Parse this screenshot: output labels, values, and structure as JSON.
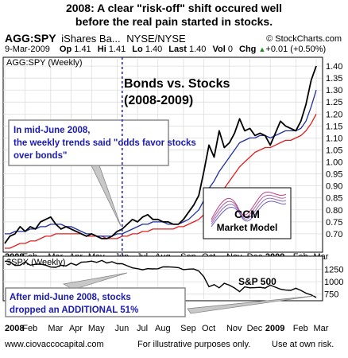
{
  "title_lines": [
    "2008: A clear \"risk-off\" shift occured well",
    "before the real pain started in stocks."
  ],
  "header": {
    "symbol": "AGG:SPY",
    "description": "iShares Ba...",
    "exchange": "NYSE/NYSE",
    "site": "© StockCharts.com",
    "date": "9-Mar-2009",
    "ohlc": [
      {
        "label": "Op",
        "value": "1.41"
      },
      {
        "label": "Hi",
        "value": "1.41"
      },
      {
        "label": "Lo",
        "value": "1.40"
      },
      {
        "label": "Last",
        "value": "1.40"
      },
      {
        "label": "Vol",
        "value": "0"
      },
      {
        "label": "Chg",
        "value": "+0.01 (+0.50%)"
      }
    ],
    "change_icon": "up-triangle-icon"
  },
  "footer": {
    "site": "www.ciovaccocapital.com",
    "note1": "For illustrative purposes only.",
    "note2": "Use at own risk."
  },
  "chart_data": [
    {
      "type": "line",
      "panel_label": "AGG:SPY (Weekly)",
      "title": "Bonds vs. Stocks",
      "subtitle": "(2008-2009)",
      "annotation": "In mid-June 2008, the weekly trends said \"odds favor stocks over bonds\"",
      "inset_label": [
        "CCM",
        "Market Model"
      ],
      "x": [
        "2008-01-04",
        "2008-01-11",
        "2008-01-18",
        "2008-01-25",
        "2008-02-01",
        "2008-02-08",
        "2008-02-15",
        "2008-02-22",
        "2008-02-29",
        "2008-03-07",
        "2008-03-14",
        "2008-03-21",
        "2008-03-28",
        "2008-04-04",
        "2008-04-11",
        "2008-04-18",
        "2008-04-25",
        "2008-05-02",
        "2008-05-09",
        "2008-05-16",
        "2008-05-23",
        "2008-05-30",
        "2008-06-06",
        "2008-06-13",
        "2008-06-20",
        "2008-06-27",
        "2008-07-04",
        "2008-07-11",
        "2008-07-18",
        "2008-07-25",
        "2008-08-01",
        "2008-08-08",
        "2008-08-15",
        "2008-08-22",
        "2008-08-29",
        "2008-09-05",
        "2008-09-12",
        "2008-09-19",
        "2008-09-26",
        "2008-10-03",
        "2008-10-10",
        "2008-10-17",
        "2008-10-24",
        "2008-10-31",
        "2008-11-07",
        "2008-11-14",
        "2008-11-21",
        "2008-11-28",
        "2008-12-05",
        "2008-12-12",
        "2008-12-19",
        "2008-12-26",
        "2009-01-02",
        "2009-01-09",
        "2009-01-16",
        "2009-01-23",
        "2009-01-30",
        "2009-02-06",
        "2009-02-13",
        "2009-02-20",
        "2009-02-27",
        "2009-03-06"
      ],
      "x_ticks": [
        "2008",
        "Feb",
        "Mar",
        "Apr",
        "May",
        "Jun",
        "Jul",
        "Aug",
        "Sep",
        "Oct",
        "Nov",
        "Dec",
        "2009",
        "Feb",
        "Mar"
      ],
      "series": [
        {
          "color": "#000000",
          "values": [
            0.66,
            0.69,
            0.7,
            0.73,
            0.71,
            0.73,
            0.72,
            0.75,
            0.76,
            0.77,
            0.74,
            0.72,
            0.73,
            0.72,
            0.71,
            0.7,
            0.69,
            0.7,
            0.69,
            0.68,
            0.68,
            0.69,
            0.71,
            0.72,
            0.74,
            0.76,
            0.75,
            0.77,
            0.78,
            0.76,
            0.76,
            0.75,
            0.75,
            0.74,
            0.74,
            0.76,
            0.79,
            0.82,
            0.86,
            0.96,
            1.07,
            1.02,
            1.13,
            1.06,
            1.08,
            1.12,
            1.18,
            1.13,
            1.14,
            1.11,
            1.12,
            1.11,
            1.07,
            1.12,
            1.17,
            1.15,
            1.14,
            1.13,
            1.17,
            1.24,
            1.34,
            1.4
          ]
        },
        {
          "color": "#1f2fa0",
          "values": [
            0.7,
            0.7,
            0.71,
            0.71,
            0.71,
            0.72,
            0.72,
            0.73,
            0.73,
            0.74,
            0.74,
            0.74,
            0.73,
            0.73,
            0.72,
            0.71,
            0.7,
            0.7,
            0.69,
            0.69,
            0.69,
            0.69,
            0.7,
            0.7,
            0.71,
            0.72,
            0.73,
            0.74,
            0.74,
            0.75,
            0.75,
            0.75,
            0.74,
            0.74,
            0.74,
            0.75,
            0.76,
            0.78,
            0.8,
            0.84,
            0.89,
            0.92,
            0.96,
            0.99,
            1.02,
            1.05,
            1.08,
            1.09,
            1.1,
            1.1,
            1.11,
            1.11,
            1.1,
            1.11,
            1.12,
            1.13,
            1.13,
            1.13,
            1.14,
            1.17,
            1.23,
            1.3
          ]
        },
        {
          "color": "#e02020",
          "values": [
            0.64,
            0.64,
            0.65,
            0.66,
            0.66,
            0.67,
            0.67,
            0.68,
            0.69,
            0.69,
            0.7,
            0.7,
            0.7,
            0.7,
            0.7,
            0.7,
            0.69,
            0.69,
            0.69,
            0.69,
            0.68,
            0.68,
            0.68,
            0.69,
            0.69,
            0.7,
            0.7,
            0.71,
            0.71,
            0.72,
            0.72,
            0.72,
            0.72,
            0.72,
            0.73,
            0.73,
            0.74,
            0.75,
            0.76,
            0.78,
            0.81,
            0.83,
            0.86,
            0.89,
            0.92,
            0.95,
            0.98,
            1.0,
            1.02,
            1.04,
            1.05,
            1.06,
            1.06,
            1.07,
            1.08,
            1.09,
            1.09,
            1.1,
            1.11,
            1.13,
            1.16,
            1.2
          ]
        }
      ],
      "ylim": [
        0.63,
        1.43
      ],
      "y_ticks": [
        "0.70",
        "0.75",
        "0.80",
        "0.85",
        "0.90",
        "0.95",
        "1.00",
        "1.05",
        "1.10",
        "1.15",
        "1.20",
        "1.25",
        "1.30",
        "1.35",
        "1.40"
      ],
      "y_tick_values": [
        0.7,
        0.75,
        0.8,
        0.85,
        0.9,
        0.95,
        1.0,
        1.05,
        1.1,
        1.15,
        1.2,
        1.25,
        1.3,
        1.35,
        1.4
      ],
      "grid": true
    },
    {
      "type": "line",
      "panel_label": "$SPX (Weekly)",
      "series_label": "S&P 500",
      "annotation": "After mid-June 2008, stocks dropped an ADDITIONAL 51%",
      "x_ticks": [
        "2008",
        "Feb",
        "Mar",
        "Apr",
        "May",
        "Jun",
        "Jul",
        "Aug",
        "Sep",
        "Oct",
        "Nov",
        "Dec",
        "2009",
        "Feb",
        "Mar"
      ],
      "series": [
        {
          "color": "#000000",
          "values": [
            1411,
            1401,
            1325,
            1330,
            1395,
            1331,
            1349,
            1353,
            1331,
            1294,
            1288,
            1330,
            1316,
            1370,
            1332,
            1390,
            1397,
            1413,
            1388,
            1425,
            1375,
            1400,
            1360,
            1360,
            1318,
            1278,
            1262,
            1239,
            1261,
            1257,
            1260,
            1296,
            1298,
            1292,
            1282,
            1242,
            1252,
            1255,
            1213,
            1099,
            899,
            940,
            877,
            968,
            930,
            873,
            800,
            896,
            876,
            880,
            887,
            872,
            931,
            890,
            850,
            832,
            826,
            869,
            826,
            770,
            735,
            683
          ]
        }
      ],
      "ylim": [
        650,
        1480
      ],
      "y_ticks": [
        "750",
        "1000",
        "1250"
      ],
      "y_tick_values": [
        750,
        1000,
        1250
      ],
      "grid": true
    }
  ]
}
